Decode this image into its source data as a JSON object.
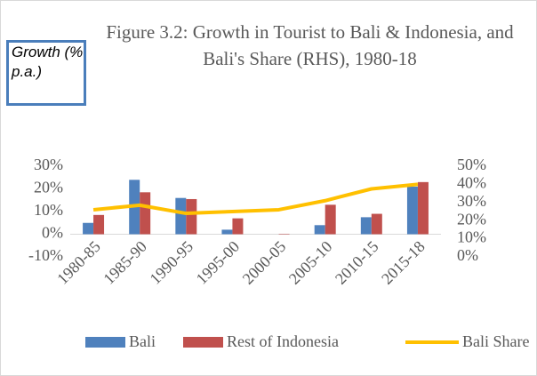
{
  "chart_data": {
    "type": "bar",
    "title": "Figure 3.2: Growth in Tourist to Bali & Indonesia, and Bali's Share (RHS), 1980-18",
    "y_label": "Growth (% p.a.)",
    "categories": [
      "1980-85",
      "1985-90",
      "1990-95",
      "1995-00",
      "2000-05",
      "2005-10",
      "2010-15",
      "2015-18"
    ],
    "series": [
      {
        "name": "Bali",
        "type": "bar",
        "color": "#4f81bd",
        "values": [
          5,
          24,
          16,
          2,
          0,
          4,
          7.5,
          21
        ]
      },
      {
        "name": "Rest of Indonesia",
        "type": "bar",
        "color": "#c0504d",
        "values": [
          8.5,
          18.5,
          15.5,
          7,
          0.2,
          13,
          9,
          23
        ]
      },
      {
        "name": "Bali Share",
        "type": "line",
        "axis": "y2",
        "color": "#ffc000",
        "values": [
          26,
          28.5,
          24,
          25,
          26,
          31,
          37.5,
          40
        ]
      }
    ],
    "ylim": [
      -10,
      30
    ],
    "yticks": [
      {
        "value": -10,
        "label": "-10%"
      },
      {
        "value": 0,
        "label": "0%"
      },
      {
        "value": 10,
        "label": "10%"
      },
      {
        "value": 20,
        "label": "20%"
      },
      {
        "value": 30,
        "label": "30%"
      }
    ],
    "y2lim": [
      0,
      50
    ],
    "y2ticks": [
      {
        "value": 0,
        "label": "0%"
      },
      {
        "value": 10,
        "label": "10%"
      },
      {
        "value": 20,
        "label": "20%"
      },
      {
        "value": 30,
        "label": "30%"
      },
      {
        "value": 40,
        "label": "40%"
      },
      {
        "value": 50,
        "label": "50%"
      }
    ],
    "grid": false,
    "legend": "bottom"
  }
}
